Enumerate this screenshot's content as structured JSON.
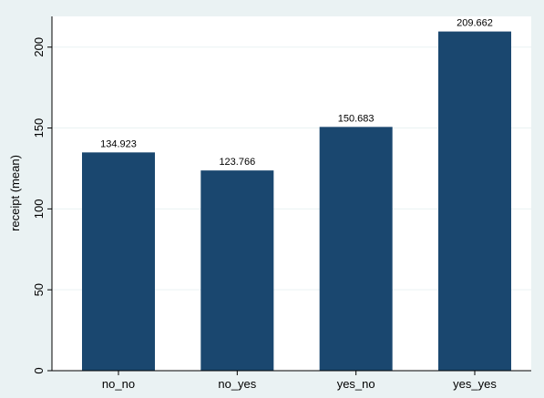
{
  "chart_data": {
    "type": "bar",
    "categories": [
      "no_no",
      "no_yes",
      "yes_no",
      "yes_yes"
    ],
    "values": [
      134.923,
      123.766,
      150.683,
      209.662
    ],
    "value_labels": [
      "134.923",
      "123.766",
      "150.683",
      "209.662"
    ],
    "title": "",
    "xlabel": "",
    "ylabel": "receipt (mean)",
    "ylim": [
      0,
      219
    ],
    "yticks": [
      0,
      50,
      100,
      150,
      200
    ],
    "grid": true,
    "colors": {
      "bar": "#1a476f",
      "background": "#eaf2f3",
      "plot_background": "#ffffff",
      "grid": "#eaf2f3"
    }
  }
}
